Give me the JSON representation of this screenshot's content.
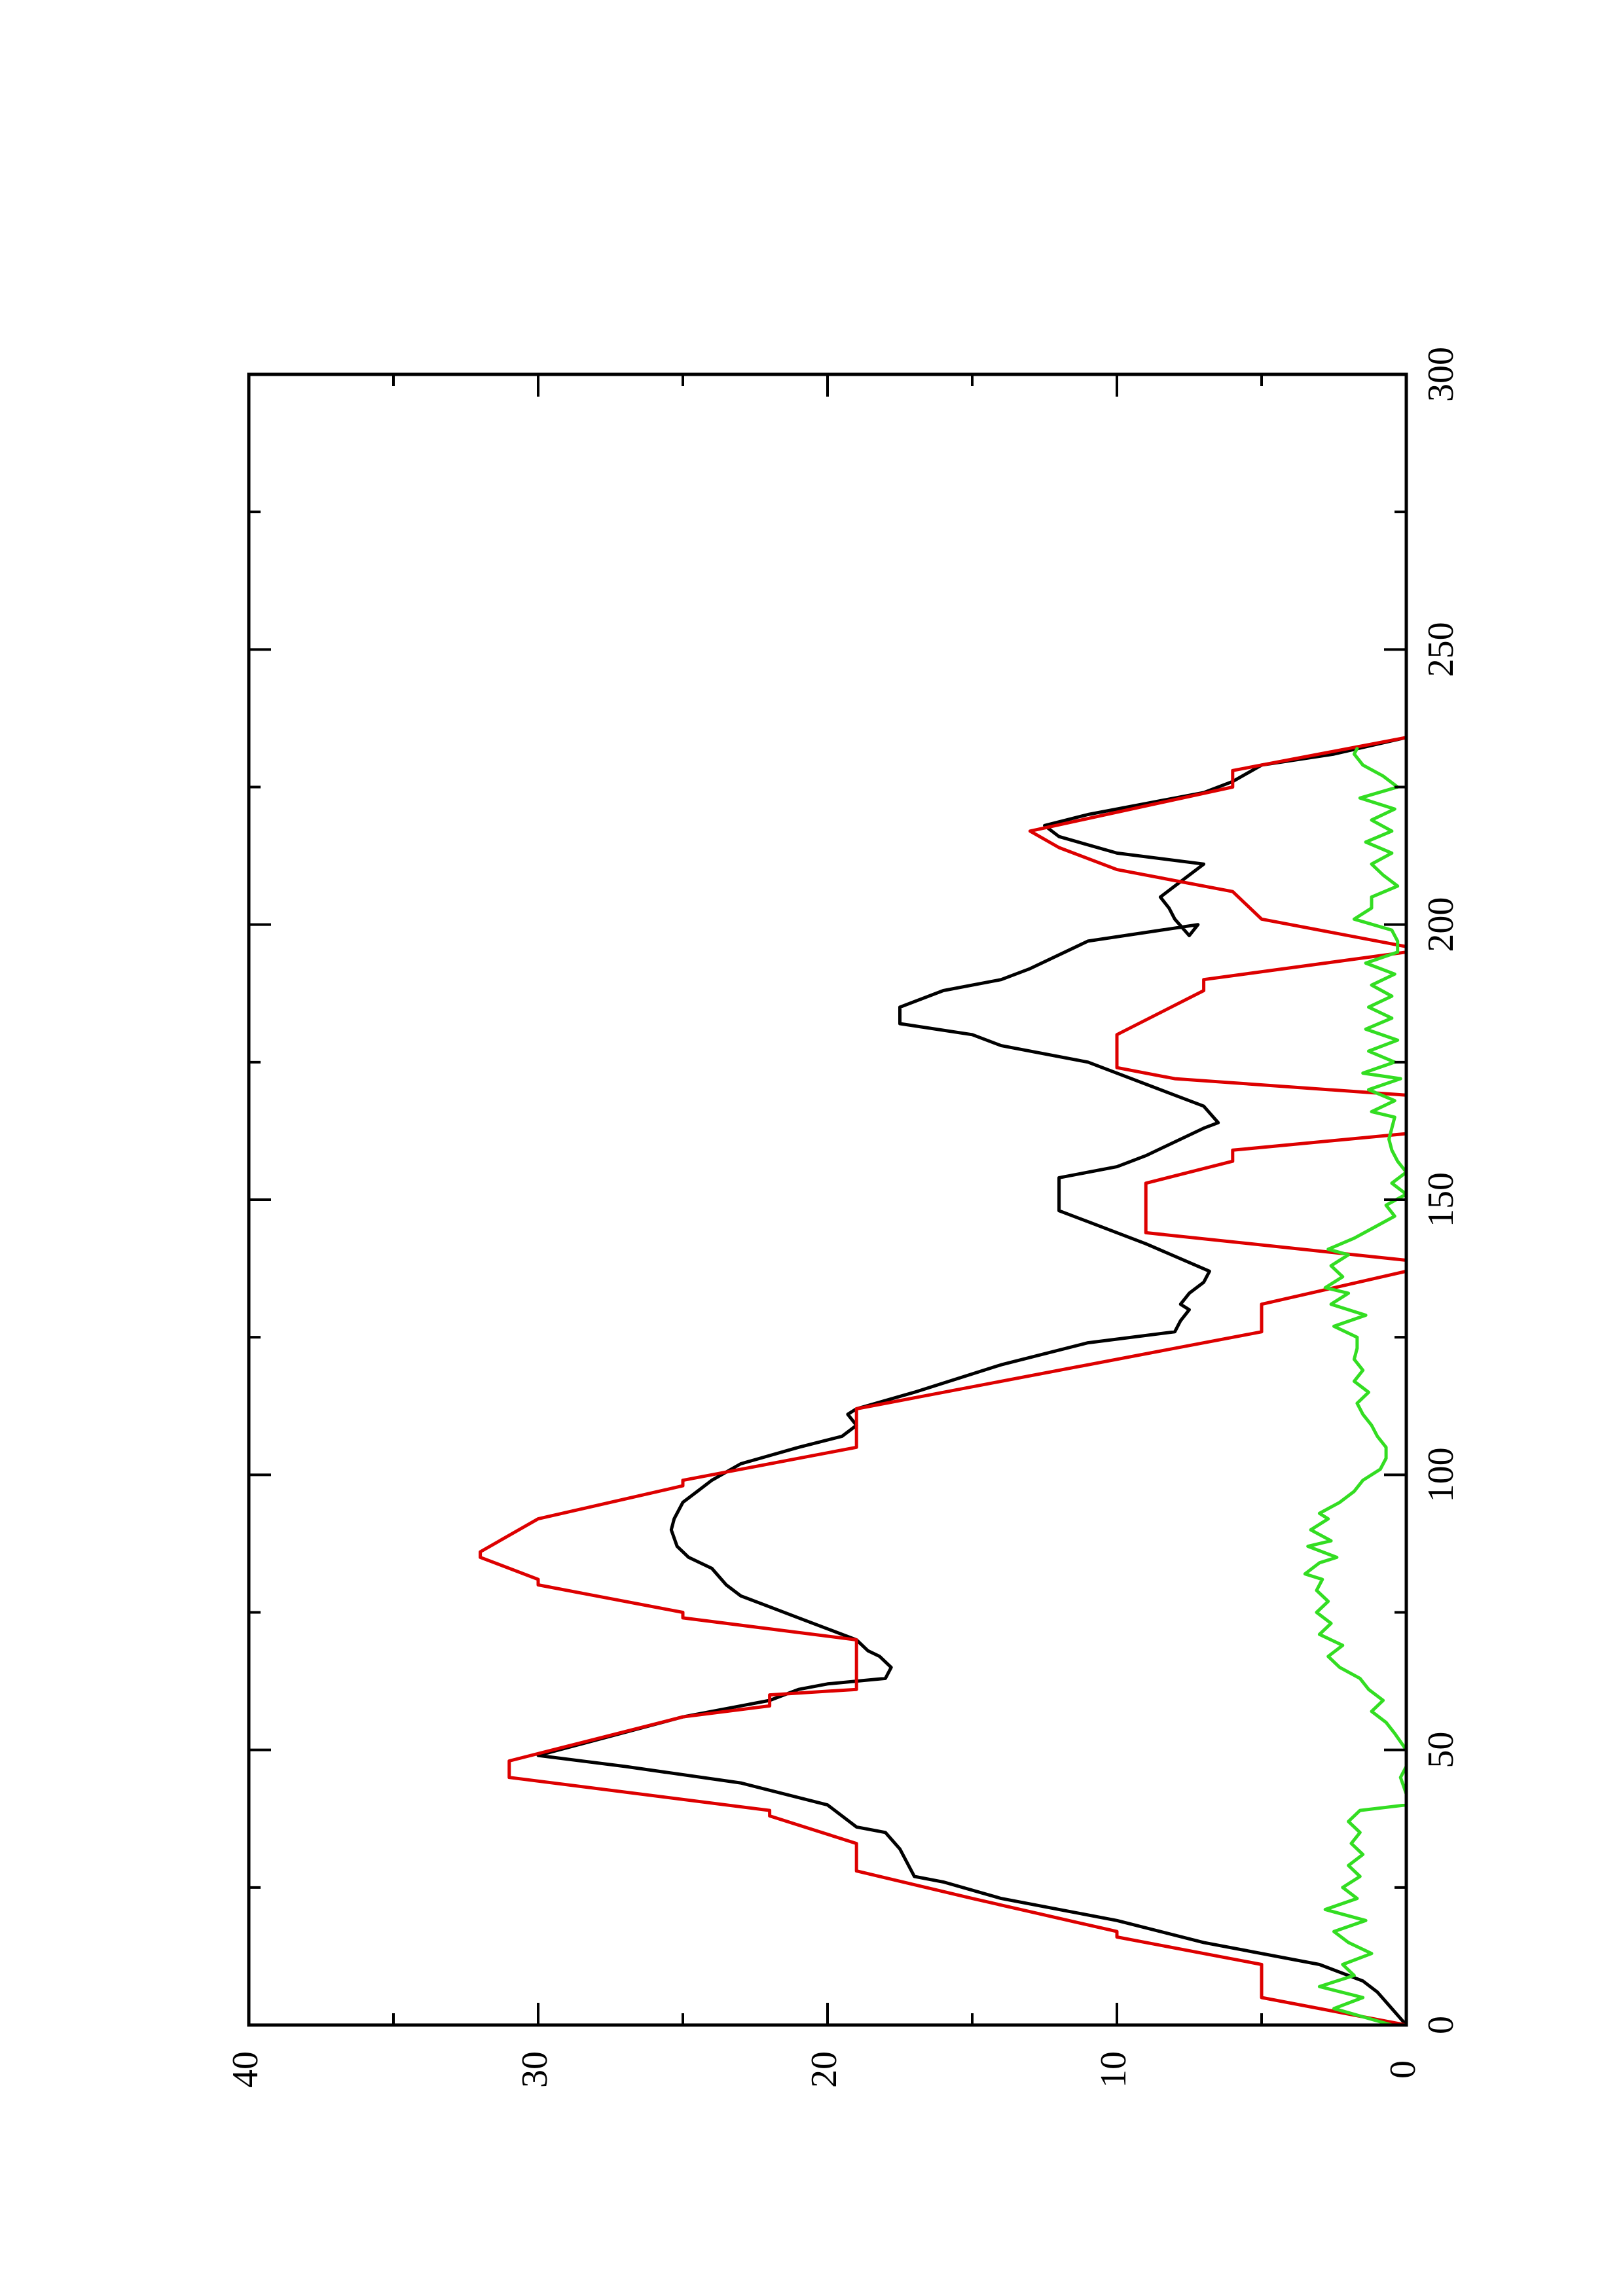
{
  "chart_data": {
    "type": "line",
    "orientation": "rotated 90° counter-clockwise (x axis runs up the page, y axis runs to the left)",
    "title": "",
    "xlabel": "",
    "ylabel": "",
    "xlim": [
      0,
      300
    ],
    "ylim": [
      0,
      40
    ],
    "x_ticks": [
      0,
      50,
      100,
      150,
      200,
      250,
      300
    ],
    "y_ticks": [
      0,
      10,
      20,
      30,
      40
    ],
    "grid": false,
    "legend": "none",
    "series": [
      {
        "color": "#000000",
        "points": [
          [
            0,
            0
          ],
          [
            3,
            0.5
          ],
          [
            6,
            1
          ],
          [
            8,
            1.5
          ],
          [
            11,
            3
          ],
          [
            15,
            7
          ],
          [
            19,
            10
          ],
          [
            23,
            14
          ],
          [
            26,
            16
          ],
          [
            27,
            17
          ],
          [
            32,
            17.5
          ],
          [
            35,
            18
          ],
          [
            36,
            19
          ],
          [
            40,
            20
          ],
          [
            44,
            23
          ],
          [
            47,
            27
          ],
          [
            49,
            30
          ],
          [
            56,
            25
          ],
          [
            59,
            22
          ],
          [
            61,
            21
          ],
          [
            62,
            20
          ],
          [
            63,
            18
          ],
          [
            65,
            17.8
          ],
          [
            67,
            18.2
          ],
          [
            68,
            18.6
          ],
          [
            70,
            19
          ],
          [
            72,
            20
          ],
          [
            74,
            21
          ],
          [
            76,
            22
          ],
          [
            78,
            23
          ],
          [
            80,
            23.5
          ],
          [
            83,
            24
          ],
          [
            85,
            24.8
          ],
          [
            87,
            25.2
          ],
          [
            90,
            25.4
          ],
          [
            92,
            25.3
          ],
          [
            95,
            25
          ],
          [
            97,
            24.5
          ],
          [
            99,
            24
          ],
          [
            102,
            23
          ],
          [
            105,
            21
          ],
          [
            107,
            19.5
          ],
          [
            109,
            19
          ],
          [
            111,
            19.3
          ],
          [
            112,
            19
          ],
          [
            115,
            17
          ],
          [
            120,
            14
          ],
          [
            124,
            11
          ],
          [
            126,
            8
          ],
          [
            128,
            7.8
          ],
          [
            130,
            7.5
          ],
          [
            131,
            7.8
          ],
          [
            133,
            7.5
          ],
          [
            135,
            7
          ],
          [
            137,
            6.8
          ],
          [
            142,
            9
          ],
          [
            146,
            11
          ],
          [
            148,
            12
          ],
          [
            154,
            12
          ],
          [
            156,
            10
          ],
          [
            158,
            9
          ],
          [
            163,
            7
          ],
          [
            164,
            6.5
          ],
          [
            167,
            7
          ],
          [
            169,
            8
          ],
          [
            175,
            11
          ],
          [
            178,
            14
          ],
          [
            180,
            15
          ],
          [
            182,
            17.5
          ],
          [
            185,
            17.5
          ],
          [
            188,
            16
          ],
          [
            190,
            14
          ],
          [
            192,
            13
          ],
          [
            197,
            11
          ],
          [
            200,
            7.2
          ],
          [
            198,
            7.5
          ],
          [
            201,
            8
          ],
          [
            203,
            8.2
          ],
          [
            205,
            8.5
          ],
          [
            207,
            8
          ],
          [
            209,
            7.5
          ],
          [
            211,
            7
          ],
          [
            213,
            10
          ],
          [
            216,
            12
          ],
          [
            218,
            12.5
          ],
          [
            220,
            11
          ],
          [
            222,
            9
          ],
          [
            224,
            7
          ],
          [
            226,
            6
          ],
          [
            229,
            5
          ],
          [
            231,
            2.5
          ],
          [
            234,
            0
          ]
        ]
      },
      {
        "color": "#dd0000",
        "points": [
          [
            0,
            0
          ],
          [
            5,
            5
          ],
          [
            11,
            5
          ],
          [
            16,
            10
          ],
          [
            17,
            10
          ],
          [
            23,
            15
          ],
          [
            28,
            19
          ],
          [
            33,
            19
          ],
          [
            38,
            22
          ],
          [
            39,
            22
          ],
          [
            45,
            31
          ],
          [
            48,
            31
          ],
          [
            56,
            25
          ],
          [
            58,
            22
          ],
          [
            60,
            22
          ],
          [
            61,
            19
          ],
          [
            68,
            19
          ],
          [
            70,
            19
          ],
          [
            74,
            25
          ],
          [
            75,
            25
          ],
          [
            80,
            30
          ],
          [
            81,
            30
          ],
          [
            85,
            32
          ],
          [
            86,
            32
          ],
          [
            92,
            30
          ],
          [
            98,
            25
          ],
          [
            99,
            25
          ],
          [
            105,
            19
          ],
          [
            111,
            19
          ],
          [
            112,
            19
          ],
          [
            126,
            5
          ],
          [
            131,
            5
          ],
          [
            137,
            0
          ],
          [
            139,
            0
          ],
          [
            144,
            9
          ],
          [
            153,
            9
          ],
          [
            157,
            6
          ],
          [
            159,
            6
          ],
          [
            162,
            0
          ],
          [
            169,
            0
          ],
          [
            172,
            8
          ],
          [
            174,
            10
          ],
          [
            180,
            10
          ],
          [
            188,
            7
          ],
          [
            190,
            7
          ],
          [
            195,
            0
          ],
          [
            196,
            0
          ],
          [
            201,
            5
          ],
          [
            206,
            6
          ],
          [
            210,
            10
          ],
          [
            214,
            12
          ],
          [
            217,
            13
          ],
          [
            225,
            6
          ],
          [
            228,
            6
          ],
          [
            234,
            0
          ]
        ]
      },
      {
        "color": "#33dd22",
        "points": [
          [
            0,
            0.5
          ],
          [
            3,
            2.5
          ],
          [
            5,
            1.5
          ],
          [
            7,
            3
          ],
          [
            9,
            1.8
          ],
          [
            11,
            2.2
          ],
          [
            13,
            1.2
          ],
          [
            15,
            2
          ],
          [
            17,
            2.5
          ],
          [
            19,
            1.4
          ],
          [
            21,
            2.8
          ],
          [
            23,
            1.7
          ],
          [
            25,
            2.2
          ],
          [
            27,
            1.6
          ],
          [
            29,
            2
          ],
          [
            31,
            1.5
          ],
          [
            33,
            1.9
          ],
          [
            35,
            1.6
          ],
          [
            37,
            2
          ],
          [
            39,
            1.6
          ],
          [
            40,
            0
          ],
          [
            42,
            0
          ],
          [
            45,
            0.2
          ],
          [
            47,
            0
          ],
          [
            50,
            0
          ],
          [
            53,
            0.4
          ],
          [
            55,
            0.7
          ],
          [
            57,
            1.2
          ],
          [
            59,
            0.8
          ],
          [
            61,
            1.3
          ],
          [
            63,
            1.6
          ],
          [
            65,
            2.3
          ],
          [
            67,
            2.7
          ],
          [
            69,
            2.2
          ],
          [
            71,
            3
          ],
          [
            73,
            2.6
          ],
          [
            75,
            3.1
          ],
          [
            77,
            2.7
          ],
          [
            79,
            3.1
          ],
          [
            81,
            2.9
          ],
          [
            82,
            3.5
          ],
          [
            84,
            3
          ],
          [
            85,
            2.4
          ],
          [
            87,
            3.4
          ],
          [
            88,
            2.6
          ],
          [
            90,
            3.3
          ],
          [
            92,
            2.7
          ],
          [
            93,
            3
          ],
          [
            95,
            2.3
          ],
          [
            97,
            1.8
          ],
          [
            99,
            1.5
          ],
          [
            101,
            0.9
          ],
          [
            103,
            0.7
          ],
          [
            105,
            0.7
          ],
          [
            107,
            1
          ],
          [
            109,
            1.2
          ],
          [
            111,
            1.5
          ],
          [
            113,
            1.7
          ],
          [
            115,
            1.3
          ],
          [
            117,
            1.8
          ],
          [
            119,
            1.5
          ],
          [
            121,
            1.8
          ],
          [
            123,
            1.7
          ],
          [
            125,
            1.7
          ],
          [
            127,
            2.5
          ],
          [
            129,
            1.4
          ],
          [
            131,
            2.6
          ],
          [
            133,
            2
          ],
          [
            134,
            2.8
          ],
          [
            136,
            2.2
          ],
          [
            138,
            2.6
          ],
          [
            140,
            2
          ],
          [
            141,
            2.7
          ],
          [
            143,
            1.8
          ],
          [
            145,
            1.1
          ],
          [
            147,
            0.4
          ],
          [
            149,
            0.7
          ],
          [
            151,
            0
          ],
          [
            153,
            0.5
          ],
          [
            155,
            0
          ],
          [
            157,
            0.3
          ],
          [
            159,
            0.5
          ],
          [
            161,
            0.6
          ],
          [
            163,
            0.5
          ],
          [
            165,
            0.4
          ],
          [
            166,
            1.2
          ],
          [
            168,
            0.4
          ],
          [
            170,
            1.3
          ],
          [
            172,
            0.2
          ],
          [
            173,
            1.5
          ],
          [
            175,
            0.4
          ],
          [
            177,
            1.3
          ],
          [
            179,
            0.3
          ],
          [
            181,
            1.4
          ],
          [
            183,
            0.5
          ],
          [
            185,
            1.3
          ],
          [
            187,
            0.5
          ],
          [
            189,
            1.2
          ],
          [
            191,
            0.4
          ],
          [
            193,
            1.4
          ],
          [
            195,
            0.3
          ],
          [
            197,
            0.3
          ],
          [
            199,
            0.5
          ],
          [
            201,
            1.8
          ],
          [
            203,
            1.2
          ],
          [
            205,
            1.2
          ],
          [
            207,
            0.3
          ],
          [
            209,
            0.8
          ],
          [
            211,
            1.2
          ],
          [
            213,
            0.5
          ],
          [
            215,
            1.4
          ],
          [
            217,
            0.5
          ],
          [
            219,
            1.2
          ],
          [
            221,
            0.4
          ],
          [
            223,
            1.6
          ],
          [
            225,
            0.3
          ],
          [
            227,
            0.8
          ],
          [
            229,
            1.5
          ],
          [
            231,
            1.8
          ],
          [
            232,
            1.7
          ]
        ]
      }
    ]
  }
}
